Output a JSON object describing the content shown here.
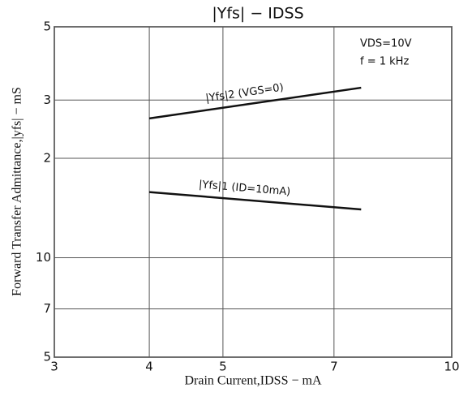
{
  "chart_data": {
    "type": "line",
    "title": "|Yfs| − IDSS",
    "x_label": "Drain Current,IDSS − mA",
    "y_label": "Forward Transfer Admittance,|yfs| − mS",
    "annotations": [
      "VDS=10V",
      "f = 1 kHz"
    ],
    "xlog": true,
    "ylog": true,
    "grid": true,
    "xlim": [
      3,
      10
    ],
    "ylim": [
      5,
      50
    ],
    "xticks": [
      3,
      4,
      5,
      7,
      10
    ],
    "yticks": [
      5,
      7,
      10,
      {
        "value": 20,
        "label": "2"
      },
      {
        "value": 30,
        "label": "3"
      },
      {
        "value": 50,
        "label": "5"
      }
    ],
    "series": [
      {
        "name": "|Yfs|2 (VGS=0)",
        "color": "#111111",
        "x": [
          4,
          7.6
        ],
        "values": [
          26.4,
          32.7
        ]
      },
      {
        "name": "|Yfs|1 (ID=10mA)",
        "color": "#111111",
        "x": [
          4,
          7.6
        ],
        "values": [
          15.8,
          14.0
        ]
      }
    ]
  }
}
